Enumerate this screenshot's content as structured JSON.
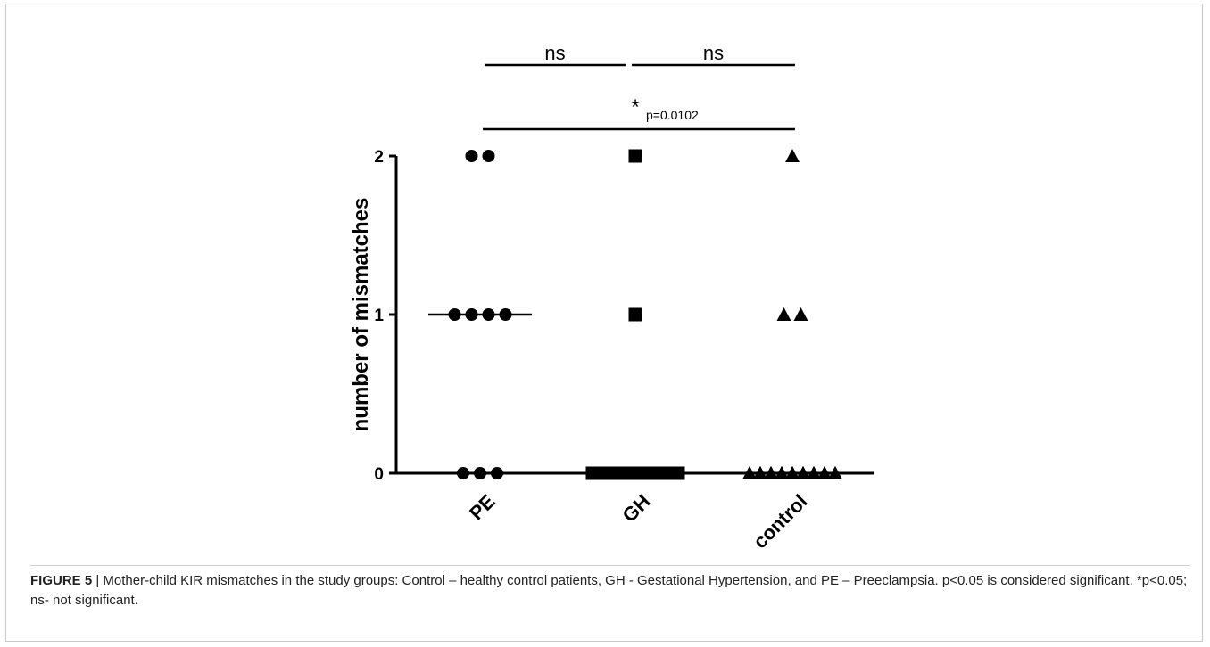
{
  "chart_data": {
    "type": "scatter",
    "ylabel": "number of mismatches",
    "xlabel": "",
    "categories": [
      "PE",
      "GH",
      "control"
    ],
    "yticks": [
      0,
      1,
      2
    ],
    "ylim": [
      0,
      2
    ],
    "grid": false,
    "markers": {
      "PE": "circle",
      "GH": "square",
      "control": "triangle"
    },
    "series": [
      {
        "category": "PE",
        "values": [
          2,
          2,
          1,
          1,
          1,
          1,
          0,
          0,
          0
        ],
        "median": 1
      },
      {
        "category": "GH",
        "values": [
          2,
          1,
          0,
          0,
          0,
          0,
          0,
          0,
          0,
          0,
          0,
          0,
          0,
          0,
          0
        ],
        "median": 0
      },
      {
        "category": "control",
        "values": [
          2,
          1,
          1,
          0,
          0,
          0,
          0,
          0,
          0,
          0,
          0,
          0,
          0,
          0,
          0,
          0,
          0,
          0,
          0,
          0,
          0,
          0,
          0,
          0,
          0,
          0,
          0,
          0
        ],
        "median": 0
      }
    ],
    "significance": [
      {
        "from": "PE",
        "to": "GH",
        "label": "ns"
      },
      {
        "from": "GH",
        "to": "control",
        "label": "ns"
      },
      {
        "from": "PE",
        "to": "control",
        "label": "*",
        "p_label": "p=0.0102"
      }
    ]
  },
  "caption": {
    "label": "FIGURE 5",
    "separator": " | ",
    "text": "Mother-child KIR mismatches in the study groups: Control – healthy control patients, GH - Gestational Hypertension, and PE – Preeclampsia. p<0.05 is considered significant. *p<0.05; ns- not significant."
  }
}
